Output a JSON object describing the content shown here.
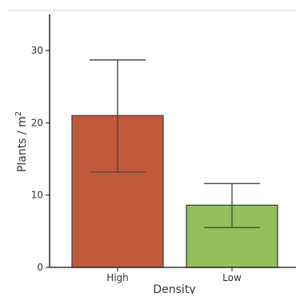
{
  "chart_data": {
    "type": "bar",
    "categories": [
      "High",
      "Low"
    ],
    "values": [
      21.0,
      8.6
    ],
    "error_bars": [
      {
        "low": 13.2,
        "high": 28.7
      },
      {
        "low": 5.5,
        "high": 11.6
      }
    ],
    "bar_colors": [
      "#c15a3b",
      "#93c05a"
    ],
    "xlabel": "Density",
    "ylabel": "Plants / m",
    "ylabel_superscript": "2",
    "ylim": [
      0,
      35
    ],
    "yticks": [
      0,
      10,
      20,
      30
    ],
    "grid": false,
    "legend": "none"
  }
}
